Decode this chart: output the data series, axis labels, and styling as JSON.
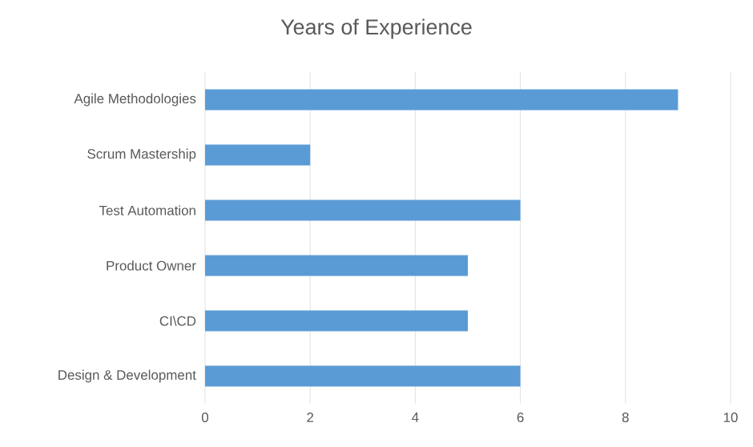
{
  "chart_data": {
    "type": "bar",
    "orientation": "horizontal",
    "title": "Years of Experience",
    "categories": [
      "Agile Methodologies",
      "Scrum Mastership",
      "Test Automation",
      "Product Owner",
      "CI\\CD",
      "Design & Development"
    ],
    "values": [
      9,
      2,
      6,
      5,
      5,
      6
    ],
    "color": "#5b9bd5",
    "xlim": [
      0,
      10
    ],
    "xticks": [
      0,
      2,
      4,
      6,
      8,
      10
    ],
    "grid": "x"
  }
}
